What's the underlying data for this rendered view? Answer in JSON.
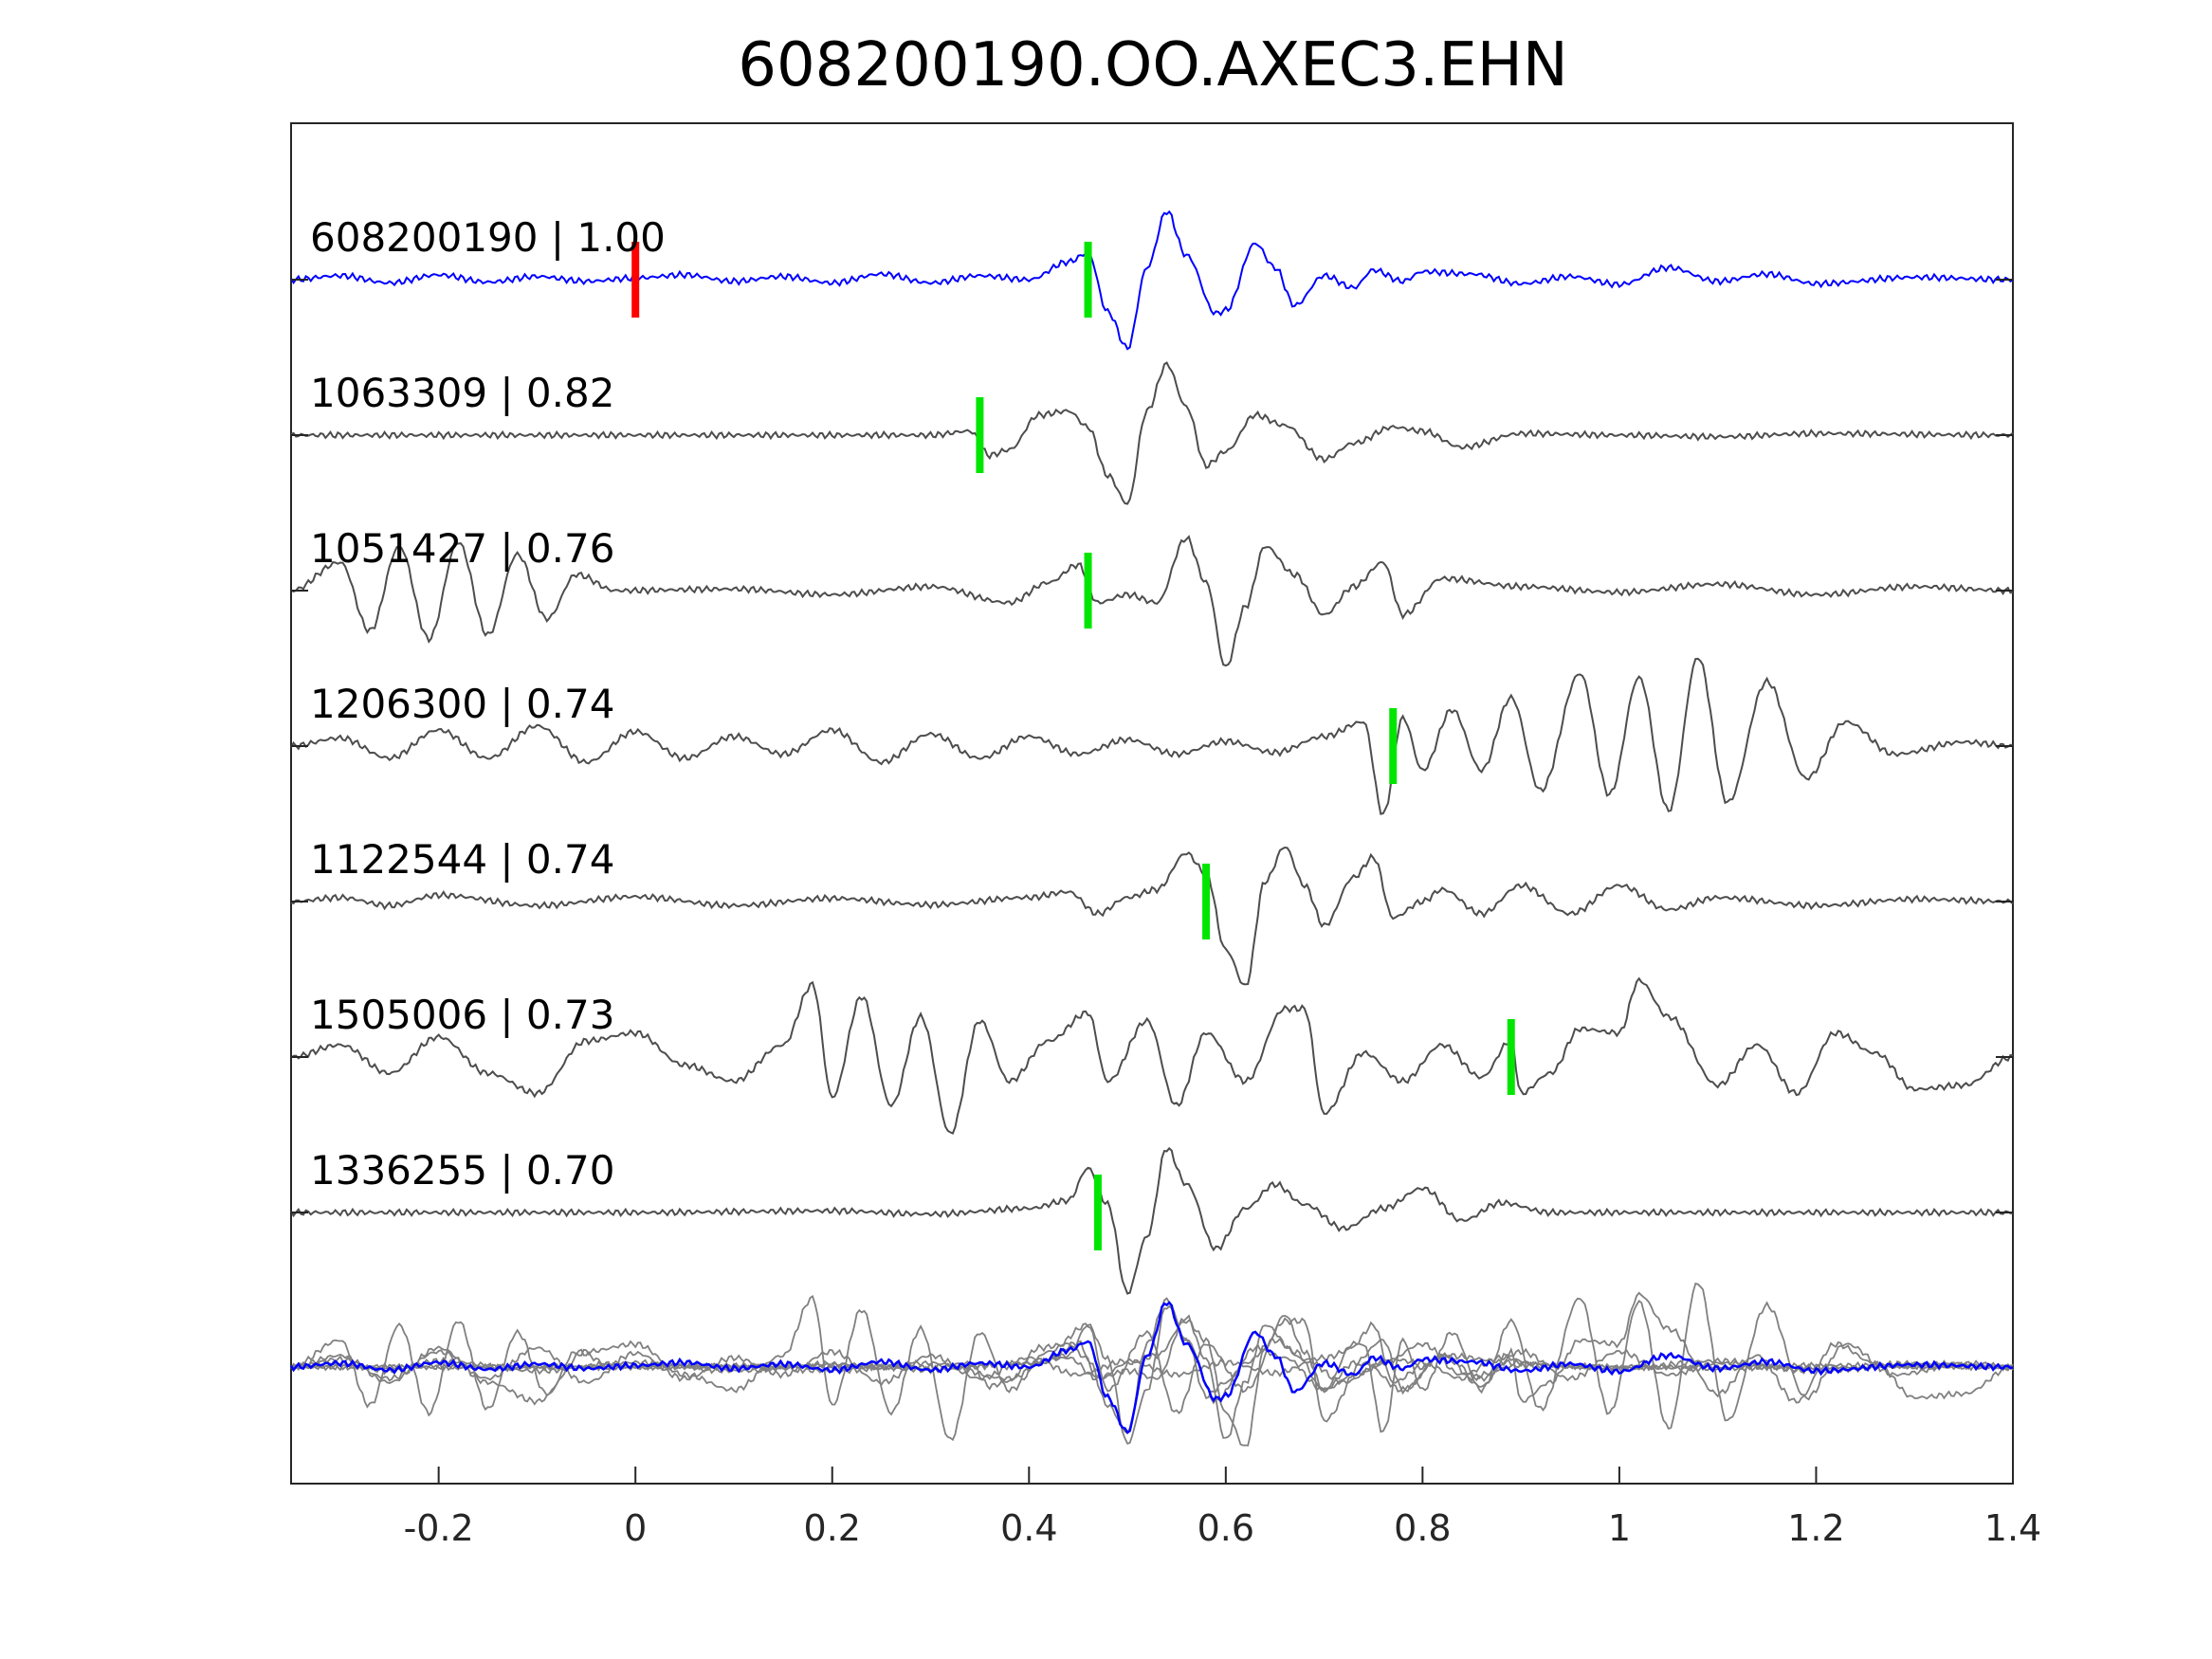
{
  "chart_data": {
    "type": "line",
    "title": "608200190.OO.AXEC3.EHN",
    "xlabel": "",
    "ylabel": "",
    "xlim": [
      -0.35,
      1.4
    ],
    "x_ticks": [
      -0.2,
      0,
      0.2,
      0.4,
      0.6,
      0.8,
      1,
      1.2,
      1.4
    ],
    "x_tick_labels": [
      "-0.2",
      "0",
      "0.2",
      "0.4",
      "0.6",
      "0.8",
      "1",
      "1.2",
      "1.4"
    ],
    "grid": false,
    "colors": {
      "template": "#0000ff",
      "trace": "#4d4d4d",
      "overlay": "#808080",
      "pick_green": "#00e600",
      "origin_red": "#ff0000"
    },
    "origin_marker_x": 0.0,
    "series": [
      {
        "label": "608200190 | 1.00",
        "pick_x": 0.46,
        "color": "template",
        "shape": [
          [
            -0.35,
            0
          ],
          [
            -0.3,
            0.05
          ],
          [
            -0.25,
            -0.04
          ],
          [
            -0.2,
            0.06
          ],
          [
            -0.15,
            -0.03
          ],
          [
            -0.1,
            0.04
          ],
          [
            -0.05,
            -0.02
          ],
          [
            0.0,
            0.02
          ],
          [
            0.05,
            0.06
          ],
          [
            0.1,
            -0.02
          ],
          [
            0.15,
            0.04
          ],
          [
            0.2,
            -0.04
          ],
          [
            0.25,
            0.07
          ],
          [
            0.3,
            -0.04
          ],
          [
            0.35,
            0.05
          ],
          [
            0.4,
            0.0
          ],
          [
            0.44,
            0.22
          ],
          [
            0.46,
            0.33
          ],
          [
            0.48,
            -0.4
          ],
          [
            0.5,
            -0.85
          ],
          [
            0.52,
            0.15
          ],
          [
            0.54,
            0.85
          ],
          [
            0.56,
            0.3
          ],
          [
            0.59,
            -0.42
          ],
          [
            0.6,
            -0.38
          ],
          [
            0.63,
            0.45
          ],
          [
            0.65,
            0.15
          ],
          [
            0.67,
            -0.32
          ],
          [
            0.7,
            0.05
          ],
          [
            0.73,
            -0.1
          ],
          [
            0.75,
            0.12
          ],
          [
            0.78,
            -0.02
          ],
          [
            0.8,
            0.1
          ],
          [
            0.85,
            0.07
          ],
          [
            0.9,
            -0.05
          ],
          [
            0.95,
            0.04
          ],
          [
            1.0,
            -0.06
          ],
          [
            1.05,
            0.15
          ],
          [
            1.1,
            -0.02
          ],
          [
            1.15,
            0.07
          ],
          [
            1.2,
            -0.05
          ],
          [
            1.3,
            0.03
          ],
          [
            1.4,
            0.0
          ]
        ]
      },
      {
        "label": "1063309 | 0.82",
        "pick_x": 0.35,
        "color": "trace",
        "shape": [
          [
            -0.35,
            0
          ],
          [
            0.0,
            0
          ],
          [
            0.3,
            0.0
          ],
          [
            0.34,
            0.05
          ],
          [
            0.36,
            -0.25
          ],
          [
            0.38,
            -0.18
          ],
          [
            0.41,
            0.25
          ],
          [
            0.44,
            0.3
          ],
          [
            0.46,
            0.1
          ],
          [
            0.48,
            -0.5
          ],
          [
            0.5,
            -0.85
          ],
          [
            0.52,
            0.3
          ],
          [
            0.54,
            0.88
          ],
          [
            0.56,
            0.35
          ],
          [
            0.58,
            -0.38
          ],
          [
            0.6,
            -0.2
          ],
          [
            0.63,
            0.25
          ],
          [
            0.66,
            0.12
          ],
          [
            0.7,
            -0.3
          ],
          [
            0.73,
            -0.1
          ],
          [
            0.77,
            0.1
          ],
          [
            0.8,
            0.05
          ],
          [
            0.84,
            -0.15
          ],
          [
            0.9,
            0.02
          ],
          [
            1.0,
            0.0
          ],
          [
            1.1,
            -0.02
          ],
          [
            1.2,
            0.02
          ],
          [
            1.4,
            0.0
          ]
        ]
      },
      {
        "label": "1051427 | 0.76",
        "pick_x": 0.46,
        "color": "trace",
        "shape": [
          [
            -0.35,
            0.0
          ],
          [
            -0.3,
            0.35
          ],
          [
            -0.27,
            -0.5
          ],
          [
            -0.24,
            0.55
          ],
          [
            -0.21,
            -0.6
          ],
          [
            -0.18,
            0.6
          ],
          [
            -0.15,
            -0.55
          ],
          [
            -0.12,
            0.45
          ],
          [
            -0.09,
            -0.35
          ],
          [
            -0.06,
            0.2
          ],
          [
            -0.02,
            0.0
          ],
          [
            0.1,
            0.02
          ],
          [
            0.2,
            -0.05
          ],
          [
            0.3,
            0.05
          ],
          [
            0.38,
            -0.15
          ],
          [
            0.42,
            0.1
          ],
          [
            0.45,
            0.32
          ],
          [
            0.47,
            -0.15
          ],
          [
            0.5,
            -0.05
          ],
          [
            0.53,
            -0.15
          ],
          [
            0.56,
            0.65
          ],
          [
            0.58,
            0.1
          ],
          [
            0.6,
            -0.95
          ],
          [
            0.62,
            -0.2
          ],
          [
            0.64,
            0.55
          ],
          [
            0.67,
            0.2
          ],
          [
            0.7,
            -0.3
          ],
          [
            0.73,
            0.05
          ],
          [
            0.76,
            0.35
          ],
          [
            0.78,
            -0.3
          ],
          [
            0.82,
            0.15
          ],
          [
            0.9,
            0.05
          ],
          [
            1.0,
            -0.02
          ],
          [
            1.1,
            0.08
          ],
          [
            1.2,
            -0.05
          ],
          [
            1.3,
            0.05
          ],
          [
            1.4,
            0.0
          ]
        ]
      },
      {
        "label": "1206300 | 0.74",
        "pick_x": 0.77,
        "color": "trace",
        "shape": [
          [
            -0.35,
            0.0
          ],
          [
            -0.3,
            0.1
          ],
          [
            -0.25,
            -0.15
          ],
          [
            -0.2,
            0.2
          ],
          [
            -0.15,
            -0.15
          ],
          [
            -0.1,
            0.25
          ],
          [
            -0.05,
            -0.2
          ],
          [
            0.0,
            0.18
          ],
          [
            0.05,
            -0.15
          ],
          [
            0.1,
            0.12
          ],
          [
            0.15,
            -0.1
          ],
          [
            0.2,
            0.2
          ],
          [
            0.25,
            -0.2
          ],
          [
            0.3,
            0.15
          ],
          [
            0.35,
            -0.15
          ],
          [
            0.4,
            0.12
          ],
          [
            0.45,
            -0.1
          ],
          [
            0.5,
            0.08
          ],
          [
            0.55,
            -0.1
          ],
          [
            0.6,
            0.06
          ],
          [
            0.65,
            -0.08
          ],
          [
            0.7,
            0.12
          ],
          [
            0.74,
            0.3
          ],
          [
            0.76,
            -0.85
          ],
          [
            0.78,
            0.35
          ],
          [
            0.8,
            -0.3
          ],
          [
            0.83,
            0.45
          ],
          [
            0.86,
            -0.3
          ],
          [
            0.89,
            0.6
          ],
          [
            0.92,
            -0.55
          ],
          [
            0.96,
            0.9
          ],
          [
            0.99,
            -0.6
          ],
          [
            1.02,
            0.85
          ],
          [
            1.05,
            -0.8
          ],
          [
            1.08,
            1.1
          ],
          [
            1.11,
            -0.7
          ],
          [
            1.15,
            0.8
          ],
          [
            1.19,
            -0.4
          ],
          [
            1.23,
            0.3
          ],
          [
            1.28,
            -0.1
          ],
          [
            1.35,
            0.05
          ],
          [
            1.4,
            0.0
          ]
        ]
      },
      {
        "label": "1122544 | 0.74",
        "pick_x": 0.58,
        "color": "trace",
        "shape": [
          [
            -0.35,
            0.0
          ],
          [
            -0.3,
            0.05
          ],
          [
            -0.25,
            -0.05
          ],
          [
            -0.2,
            0.08
          ],
          [
            -0.1,
            -0.05
          ],
          [
            0.0,
            0.06
          ],
          [
            0.1,
            -0.05
          ],
          [
            0.2,
            0.04
          ],
          [
            0.3,
            -0.04
          ],
          [
            0.4,
            0.05
          ],
          [
            0.44,
            0.12
          ],
          [
            0.47,
            -0.15
          ],
          [
            0.5,
            0.05
          ],
          [
            0.53,
            0.15
          ],
          [
            0.56,
            0.6
          ],
          [
            0.58,
            0.35
          ],
          [
            0.6,
            -0.6
          ],
          [
            0.62,
            -1.05
          ],
          [
            0.64,
            0.25
          ],
          [
            0.66,
            0.68
          ],
          [
            0.68,
            0.2
          ],
          [
            0.7,
            -0.3
          ],
          [
            0.73,
            0.3
          ],
          [
            0.75,
            0.55
          ],
          [
            0.77,
            -0.2
          ],
          [
            0.8,
            0.0
          ],
          [
            0.82,
            0.15
          ],
          [
            0.86,
            -0.15
          ],
          [
            0.9,
            0.2
          ],
          [
            0.95,
            -0.15
          ],
          [
            1.0,
            0.2
          ],
          [
            1.05,
            -0.1
          ],
          [
            1.1,
            0.05
          ],
          [
            1.2,
            -0.05
          ],
          [
            1.3,
            0.03
          ],
          [
            1.4,
            0.0
          ]
        ]
      },
      {
        "label": "1505006 | 0.73",
        "pick_x": 0.89,
        "color": "trace",
        "shape": [
          [
            -0.35,
            0.0
          ],
          [
            -0.3,
            0.15
          ],
          [
            -0.25,
            -0.2
          ],
          [
            -0.2,
            0.25
          ],
          [
            -0.15,
            -0.2
          ],
          [
            -0.1,
            -0.45
          ],
          [
            -0.05,
            0.2
          ],
          [
            0.0,
            0.3
          ],
          [
            0.05,
            -0.1
          ],
          [
            0.1,
            -0.3
          ],
          [
            0.15,
            0.15
          ],
          [
            0.18,
            0.9
          ],
          [
            0.2,
            -0.5
          ],
          [
            0.23,
            0.75
          ],
          [
            0.26,
            -0.6
          ],
          [
            0.29,
            0.5
          ],
          [
            0.32,
            -0.95
          ],
          [
            0.35,
            0.45
          ],
          [
            0.38,
            -0.3
          ],
          [
            0.42,
            0.2
          ],
          [
            0.46,
            0.55
          ],
          [
            0.48,
            -0.3
          ],
          [
            0.52,
            0.45
          ],
          [
            0.55,
            -0.6
          ],
          [
            0.58,
            0.3
          ],
          [
            0.62,
            -0.3
          ],
          [
            0.66,
            0.6
          ],
          [
            0.68,
            0.6
          ],
          [
            0.7,
            -0.7
          ],
          [
            0.74,
            0.05
          ],
          [
            0.78,
            -0.3
          ],
          [
            0.82,
            0.15
          ],
          [
            0.86,
            -0.25
          ],
          [
            0.89,
            0.2
          ],
          [
            0.9,
            -0.45
          ],
          [
            0.93,
            -0.2
          ],
          [
            0.96,
            0.35
          ],
          [
            1.0,
            0.3
          ],
          [
            1.02,
            0.95
          ],
          [
            1.05,
            0.5
          ],
          [
            1.1,
            -0.35
          ],
          [
            1.14,
            0.15
          ],
          [
            1.18,
            -0.45
          ],
          [
            1.22,
            0.3
          ],
          [
            1.26,
            0.05
          ],
          [
            1.3,
            -0.4
          ],
          [
            1.35,
            -0.35
          ],
          [
            1.4,
            0.0
          ]
        ]
      },
      {
        "label": "1336255 | 0.70",
        "pick_x": 0.47,
        "color": "trace",
        "shape": [
          [
            -0.35,
            0.0
          ],
          [
            0.0,
            0.0
          ],
          [
            0.2,
            0.02
          ],
          [
            0.3,
            -0.02
          ],
          [
            0.4,
            0.05
          ],
          [
            0.44,
            0.15
          ],
          [
            0.46,
            0.55
          ],
          [
            0.48,
            0.1
          ],
          [
            0.5,
            -1.0
          ],
          [
            0.52,
            -0.3
          ],
          [
            0.54,
            0.8
          ],
          [
            0.56,
            0.35
          ],
          [
            0.59,
            -0.45
          ],
          [
            0.62,
            0.05
          ],
          [
            0.65,
            0.35
          ],
          [
            0.68,
            0.1
          ],
          [
            0.72,
            -0.2
          ],
          [
            0.76,
            0.05
          ],
          [
            0.8,
            0.3
          ],
          [
            0.84,
            -0.1
          ],
          [
            0.88,
            0.12
          ],
          [
            0.93,
            0.0
          ],
          [
            1.0,
            0.0
          ],
          [
            1.2,
            0.0
          ],
          [
            1.4,
            0.0
          ]
        ]
      }
    ]
  }
}
